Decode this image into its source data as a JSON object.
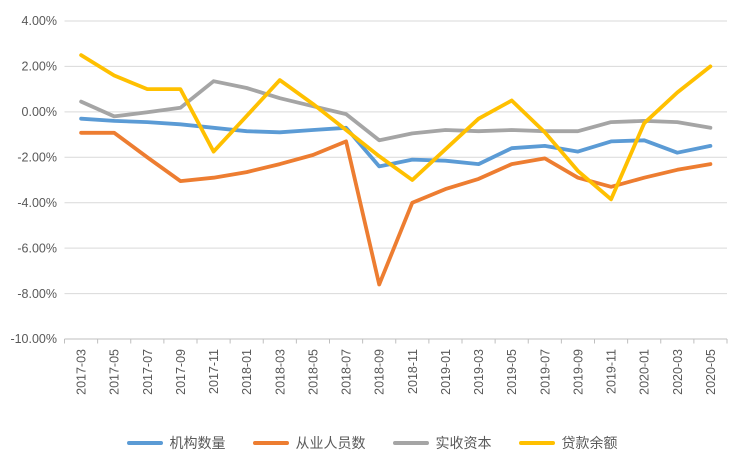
{
  "chart_data": {
    "type": "line",
    "title": "",
    "categories": [
      "2017-03",
      "2017-05",
      "2017-07",
      "2017-09",
      "2017-11",
      "2018-01",
      "2018-03",
      "2018-05",
      "2018-07",
      "2018-09",
      "2018-11",
      "2019-01",
      "2019-03",
      "2019-05",
      "2019-07",
      "2019-09",
      "2019-11",
      "2020-01",
      "2020-03",
      "2020-05"
    ],
    "series": [
      {
        "name": "机构数量",
        "color": "#5B9BD5",
        "values": [
          -0.3,
          -0.4,
          -0.45,
          -0.55,
          -0.7,
          -0.85,
          -0.9,
          -0.8,
          -0.7,
          -2.4,
          -2.1,
          -2.15,
          -2.3,
          -1.6,
          -1.5,
          -1.75,
          -1.3,
          -1.25,
          -1.8,
          -1.5
        ]
      },
      {
        "name": "从业人员数",
        "color": "#ED7D31",
        "values": [
          -0.92,
          -0.92,
          -2.0,
          -3.05,
          -2.9,
          -2.65,
          -2.3,
          -1.9,
          -1.3,
          -7.6,
          -4.0,
          -3.4,
          -2.95,
          -2.3,
          -2.05,
          -2.9,
          -3.3,
          -2.9,
          -2.55,
          -2.3
        ]
      },
      {
        "name": "实收资本",
        "color": "#A5A5A5",
        "values": [
          0.45,
          -0.2,
          -0.02,
          0.18,
          1.35,
          1.05,
          0.6,
          0.25,
          -0.1,
          -1.25,
          -0.95,
          -0.8,
          -0.85,
          -0.8,
          -0.85,
          -0.85,
          -0.45,
          -0.4,
          -0.45,
          -0.7
        ]
      },
      {
        "name": "贷款余额",
        "color": "#FFC000",
        "values": [
          2.5,
          1.6,
          1.0,
          1.0,
          -1.75,
          -0.18,
          1.4,
          0.35,
          -0.8,
          -1.95,
          -3.0,
          -1.65,
          -0.3,
          0.5,
          -0.9,
          -2.6,
          -3.85,
          -0.5,
          0.85,
          2.0
        ]
      }
    ],
    "y_axis": {
      "min": -10,
      "max": 4,
      "step": 2,
      "tick_labels": [
        "4.00%",
        "2.00%",
        "0.00%",
        "-2.00%",
        "-4.00%",
        "-6.00%",
        "-8.00%",
        "-10.00%"
      ]
    },
    "x_axis": {
      "label_rotation_degrees": -90
    },
    "grid": "horizontal",
    "legend_position": "bottom"
  },
  "colors": {
    "gridline": "#D9D9D9",
    "axis_line": "#BFBFBF",
    "tick_text": "#595959",
    "background": "#FFFFFF"
  }
}
